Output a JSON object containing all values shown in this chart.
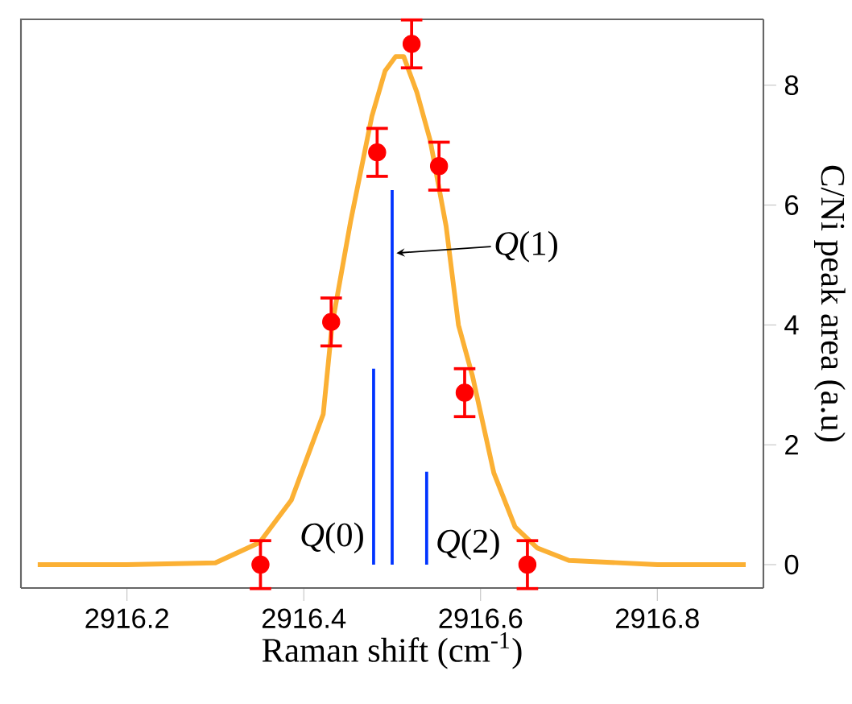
{
  "chart_data": {
    "type": "scatter",
    "xlabel": "Raman shift (cm$^{-1}$)",
    "ylabel": "C/Ni peak area (a.u)",
    "xlim": [
      2916.08,
      2916.92
    ],
    "ylim": [
      -0.39,
      9.1
    ],
    "xticks": [
      2916.2,
      2916.4,
      2916.6,
      2916.8
    ],
    "yticks": [
      0,
      2,
      4,
      6,
      8
    ],
    "grid": false,
    "series": [
      {
        "type": "line",
        "color": "#fbb034",
        "x": [
          2916.099,
          2916.2,
          2916.3,
          2916.35,
          2916.386,
          2916.422,
          2916.432,
          2916.453,
          2916.477,
          2916.492,
          2916.504,
          2916.513,
          2916.528,
          2916.543,
          2916.561,
          2916.575,
          2916.591,
          2916.615,
          2916.639,
          2916.664,
          2916.7,
          2916.8,
          2916.9
        ],
        "values": [
          0,
          0,
          0.03,
          0.37,
          1.08,
          2.51,
          4.0,
          5.73,
          7.48,
          8.24,
          8.48,
          8.48,
          7.88,
          7.08,
          5.65,
          4.0,
          3.14,
          1.53,
          0.63,
          0.28,
          0.07,
          0,
          0
        ]
      },
      {
        "type": "bar",
        "color": "#0033ff",
        "x": [
          2916.479,
          2916.5,
          2916.539
        ],
        "values": [
          3.27,
          6.25,
          1.55
        ]
      },
      {
        "color": "#ff0000",
        "marker": "circle",
        "x": [
          2916.351,
          2916.431,
          2916.483,
          2916.522,
          2916.553,
          2916.582,
          2916.653
        ],
        "values": [
          0,
          4.05,
          6.88,
          8.69,
          6.65,
          2.87,
          0
        ],
        "errors": [
          0.4,
          0.4,
          0.4,
          0.4,
          0.4,
          0.4,
          0.4
        ]
      }
    ],
    "annotations": [
      "*Q*(0)",
      {
        "text": "*Q*(1)",
        "x": 2916.5,
        "y": 5.2
      },
      "*Q*(2)"
    ]
  }
}
